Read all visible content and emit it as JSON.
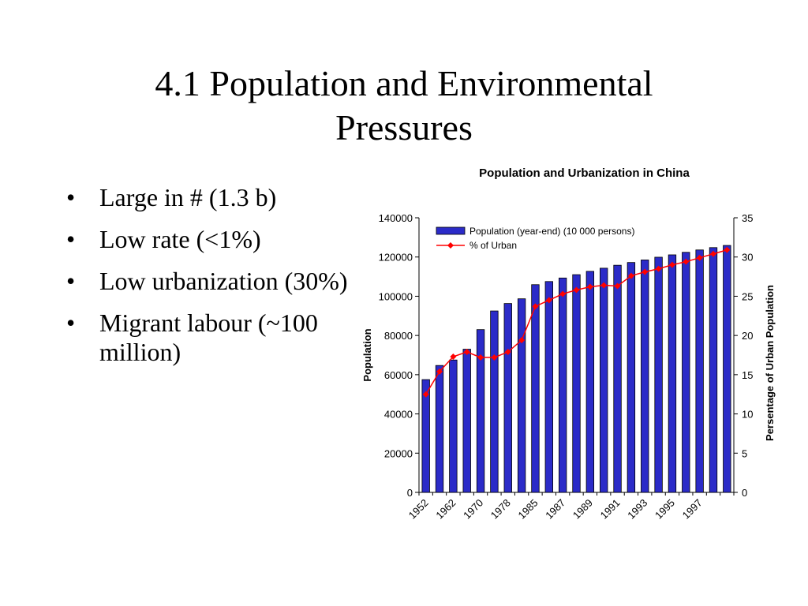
{
  "slide": {
    "title_line1": "4.1 Population and Environmental",
    "title_line2": "Pressures",
    "bullet_symbol": "•",
    "bullets": [
      "Large in # (1.3 b)",
      "Low rate (<1%)",
      "Low urbanization (30%)",
      "Migrant labour (~100 million)"
    ]
  },
  "chart_data": {
    "type": "bar",
    "title": "Population and Urbanization in China",
    "xlabel": "",
    "ylabel": "Population",
    "y2label": "Persentage of Urban Population",
    "ylim": [
      0,
      140000
    ],
    "yticks": [
      "0",
      "20000",
      "40000",
      "60000",
      "80000",
      "100000",
      "120000",
      "140000"
    ],
    "y2lim": [
      0,
      35
    ],
    "y2ticks": [
      "0",
      "5",
      "10",
      "15",
      "20",
      "25",
      "30",
      "35"
    ],
    "categories": [
      "1952",
      "",
      "1962",
      "",
      "1970",
      "",
      "1978",
      "",
      "1985",
      "",
      "1987",
      "",
      "1989",
      "",
      "1991",
      "",
      "1993",
      "",
      "1995",
      "",
      "1997",
      "",
      ""
    ],
    "series": [
      {
        "name": "Population (year-end) (10 000 persons)",
        "type": "bar",
        "color": "#2b2bc8",
        "values": [
          57500,
          64700,
          67500,
          73000,
          83000,
          92500,
          96300,
          98700,
          105900,
          107500,
          109300,
          111000,
          112700,
          114300,
          115800,
          117200,
          118500,
          119900,
          121100,
          122400,
          123600,
          124800,
          125900
        ]
      },
      {
        "name": "% of Urban",
        "type": "line",
        "axis": "right",
        "color": "#ff0000",
        "values": [
          12.5,
          15.4,
          17.3,
          17.9,
          17.2,
          17.2,
          17.9,
          19.4,
          23.7,
          24.5,
          25.3,
          25.8,
          26.2,
          26.4,
          26.3,
          27.6,
          28.1,
          28.5,
          29.0,
          29.4,
          29.9,
          30.4,
          30.9
        ]
      }
    ],
    "legend": "top-left",
    "grid": false
  }
}
